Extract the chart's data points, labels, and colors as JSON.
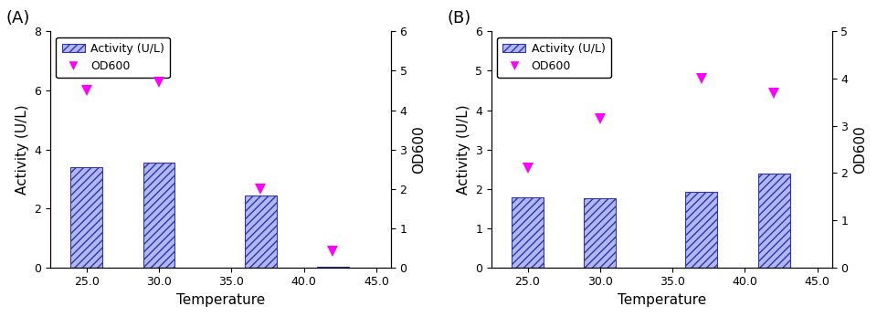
{
  "panel_A": {
    "label": "(A)",
    "temperatures": [
      25.0,
      30.0,
      37.0,
      42.0
    ],
    "activity": [
      3.4,
      3.55,
      2.45,
      0.03
    ],
    "od600": [
      4.5,
      4.72,
      2.0,
      0.4
    ],
    "ylim_left": [
      0,
      8
    ],
    "ylim_right": [
      0,
      6
    ],
    "yticks_left": [
      0,
      2,
      4,
      6,
      8
    ],
    "yticks_right": [
      0,
      1,
      2,
      3,
      4,
      5,
      6
    ],
    "ylabel_left": "Activity (U/L)",
    "ylabel_right": "OD600"
  },
  "panel_B": {
    "label": "(B)",
    "temperatures": [
      25.0,
      30.0,
      37.0,
      42.0
    ],
    "activity": [
      1.78,
      1.75,
      1.92,
      2.38
    ],
    "od600": [
      2.1,
      3.15,
      4.0,
      3.7
    ],
    "ylim_left": [
      0,
      6
    ],
    "ylim_right": [
      0,
      5
    ],
    "yticks_left": [
      0,
      1,
      2,
      3,
      4,
      5,
      6
    ],
    "yticks_right": [
      0,
      1,
      2,
      3,
      4,
      5
    ],
    "ylabel_left": "Activity (U/L)",
    "ylabel_right": "OD600"
  },
  "xlabel": "Temperature",
  "bar_edgecolor": "#3333aa",
  "bar_hatch": "////",
  "bar_facecolor": "#b0b8f0",
  "marker_color": "#ff00ff",
  "marker": "v",
  "marker_size": 9,
  "xlim": [
    22.5,
    46.0
  ],
  "xticks": [
    25.0,
    30.0,
    35.0,
    40.0,
    45.0
  ],
  "bar_width": 2.2,
  "legend_activity_label": "Activity (U/L)",
  "legend_od600_label": "OD600"
}
